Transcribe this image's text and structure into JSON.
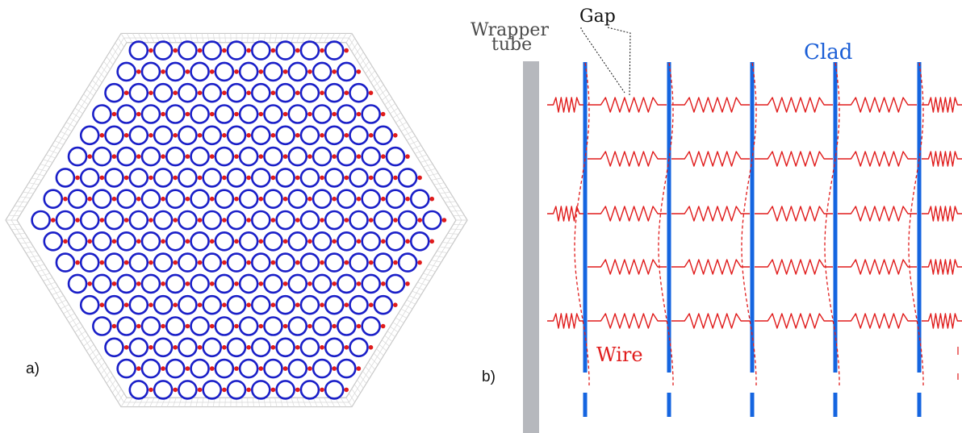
{
  "panel_a": {
    "label": "a)",
    "colors": {
      "pin": "#1a1fc8",
      "wire": "#e01b1b",
      "wrapper_grid": "#c8c8c8"
    },
    "rows_per_half": 8
  },
  "panel_b": {
    "label": "b)",
    "labels": {
      "wrapper_line1": "Wrapper",
      "wrapper_line2": "tube",
      "gap": "Gap",
      "clad": "Clad",
      "wire": "Wire"
    },
    "colors": {
      "clad": "#1565e0",
      "wire": "#e01b1b",
      "wrapper": "#b6b8bd",
      "clad_label": "#1a5ed6",
      "wire_label": "#e01b1b",
      "text": "#111111"
    },
    "clad_count": 5,
    "spring_rows": 5
  }
}
